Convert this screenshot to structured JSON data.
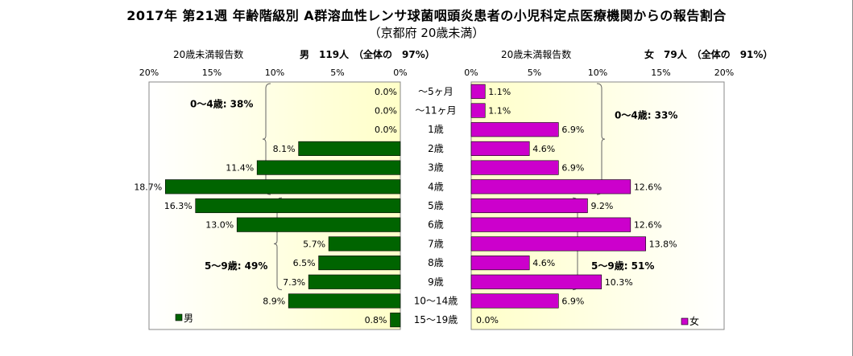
{
  "title": "2017年 第21週 年齢階級別 A群溶血性レンサ球菌咽頭炎患者の小児科定点医療機関からの報告割合",
  "subtitle": "（京都府 20歳未満）",
  "chart_data": {
    "type": "bar",
    "orientation": "horizontal-butterfly",
    "categories": [
      "～5ヶ月",
      "～11ヶ月",
      "1歳",
      "2歳",
      "3歳",
      "4歳",
      "5歳",
      "6歳",
      "7歳",
      "8歳",
      "9歳",
      "10～14歳",
      "15～19歳"
    ],
    "left_panel": {
      "header": "20歳未満報告数",
      "summary": "男　119人　（全体の　97%）",
      "legend": "男",
      "color": "#006400",
      "xlim": [
        0,
        20
      ],
      "ticks": [
        "20%",
        "15%",
        "10%",
        "5%",
        "0%"
      ],
      "values": [
        0.0,
        0.0,
        0.0,
        8.1,
        11.4,
        18.7,
        16.3,
        13.0,
        5.7,
        6.5,
        7.3,
        8.9,
        0.8
      ],
      "labels": [
        "0.0%",
        "0.0%",
        "0.0%",
        "8.1%",
        "11.4%",
        "18.7%",
        "16.3%",
        "13.0%",
        "5.7%",
        "6.5%",
        "7.3%",
        "8.9%",
        "0.8%"
      ],
      "annotations": [
        "0～4歳: 38%",
        "5～9歳: 49%"
      ]
    },
    "right_panel": {
      "header": "20歳未満報告数",
      "summary": "女　79人　（全体の　91%）",
      "legend": "女",
      "color": "#cc00cc",
      "xlim": [
        0,
        20
      ],
      "ticks": [
        "0%",
        "5%",
        "10%",
        "15%",
        "20%"
      ],
      "values": [
        1.1,
        1.1,
        6.9,
        4.6,
        6.9,
        12.6,
        9.2,
        12.6,
        13.8,
        4.6,
        10.3,
        6.9,
        0.0
      ],
      "labels": [
        "1.1%",
        "1.1%",
        "6.9%",
        "4.6%",
        "6.9%",
        "12.6%",
        "9.2%",
        "12.6%",
        "13.8%",
        "4.6%",
        "10.3%",
        "6.9%",
        "0.0%"
      ],
      "annotations": [
        "0～4歳: 33%",
        "5～9歳: 51%"
      ]
    }
  }
}
